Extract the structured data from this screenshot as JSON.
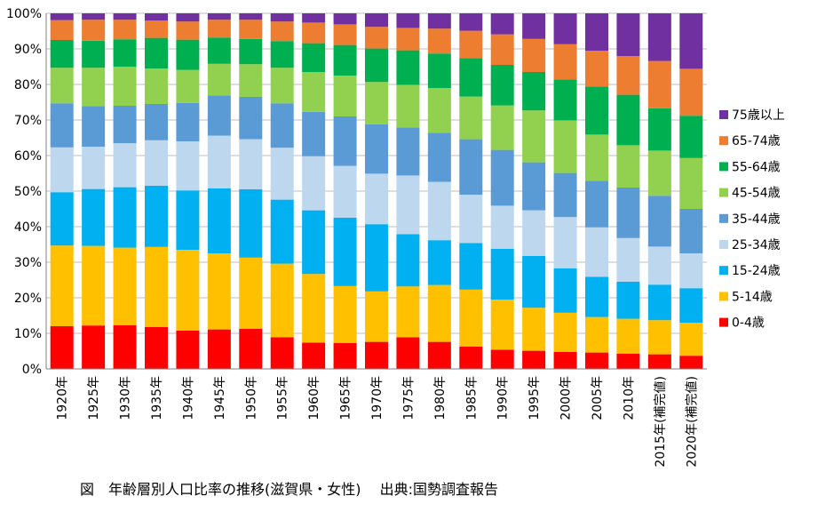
{
  "chart_data": {
    "type": "bar",
    "stacked": true,
    "categories": [
      "1920年",
      "1925年",
      "1930年",
      "1935年",
      "1940年",
      "1945年",
      "1950年",
      "1955年",
      "1960年",
      "1965年",
      "1970年",
      "1975年",
      "1980年",
      "1985年",
      "1990年",
      "1995年",
      "2000年",
      "2005年",
      "2010年",
      "2015年(補完値)",
      "2020年(補完値)"
    ],
    "y_ticks": [
      "0%",
      "10%",
      "20%",
      "30%",
      "40%",
      "50%",
      "60%",
      "70%",
      "80%",
      "90%",
      "100%"
    ],
    "ylim": [
      0,
      100
    ],
    "legend_position": "right",
    "series": [
      {
        "name": "0-4歳",
        "color": "#ff0000",
        "values": [
          12.0,
          12.2,
          12.3,
          11.8,
          10.8,
          11.1,
          11.3,
          8.9,
          7.4,
          7.3,
          7.6,
          8.9,
          7.6,
          6.3,
          5.4,
          5.1,
          4.8,
          4.6,
          4.3,
          4.1,
          3.7
        ]
      },
      {
        "name": "5-14歳",
        "color": "#ffc000",
        "values": [
          22.7,
          22.4,
          21.8,
          22.5,
          22.7,
          21.4,
          20.0,
          20.7,
          19.3,
          16.0,
          14.2,
          14.3,
          16.0,
          16.0,
          14.1,
          12.1,
          11.0,
          10.0,
          9.8,
          9.6,
          9.3
        ]
      },
      {
        "name": "15-24歳",
        "color": "#00b0f0",
        "values": [
          15.0,
          16.0,
          17.0,
          17.2,
          16.7,
          18.3,
          19.2,
          18.0,
          17.9,
          19.2,
          18.9,
          14.7,
          12.6,
          13.1,
          14.3,
          14.6,
          12.5,
          11.3,
          10.4,
          10.0,
          9.7
        ]
      },
      {
        "name": "25-34歳",
        "color": "#bdd7ee",
        "values": [
          12.6,
          11.9,
          12.4,
          12.8,
          13.8,
          14.8,
          14.1,
          14.6,
          15.2,
          14.6,
          14.2,
          16.5,
          16.4,
          13.6,
          12.1,
          12.8,
          14.4,
          13.9,
          12.3,
          10.7,
          9.8
        ]
      },
      {
        "name": "35-44歳",
        "color": "#5b9bd5",
        "values": [
          12.4,
          11.4,
          10.5,
          10.2,
          10.8,
          11.3,
          11.9,
          12.5,
          12.5,
          13.9,
          13.9,
          13.5,
          13.8,
          15.6,
          15.7,
          13.5,
          12.4,
          13.1,
          14.2,
          14.3,
          12.5
        ]
      },
      {
        "name": "45-54歳",
        "color": "#92d050",
        "values": [
          10.0,
          10.8,
          11.0,
          10.0,
          9.3,
          8.9,
          9.2,
          10.0,
          11.2,
          11.5,
          11.9,
          12.0,
          12.6,
          12.0,
          12.5,
          14.6,
          14.8,
          13.0,
          11.9,
          12.7,
          14.3
        ]
      },
      {
        "name": "55-64歳",
        "color": "#00b050",
        "values": [
          7.8,
          7.6,
          7.7,
          8.6,
          8.5,
          7.4,
          7.1,
          7.5,
          8.1,
          8.6,
          9.4,
          9.7,
          9.7,
          10.8,
          11.4,
          10.8,
          11.5,
          13.5,
          14.2,
          11.9,
          11.9
        ]
      },
      {
        "name": "65-74歳",
        "color": "#ed7d31",
        "values": [
          5.6,
          5.9,
          5.5,
          4.9,
          5.1,
          5.0,
          5.4,
          5.5,
          5.8,
          5.8,
          6.1,
          6.3,
          7.0,
          7.7,
          8.6,
          9.3,
          9.9,
          10.1,
          10.9,
          13.3,
          13.2
        ]
      },
      {
        "name": "75歳以上",
        "color": "#7030a0",
        "values": [
          1.9,
          1.8,
          1.8,
          2.0,
          2.3,
          1.8,
          1.8,
          2.3,
          2.6,
          3.1,
          3.8,
          4.1,
          4.3,
          4.9,
          5.9,
          7.2,
          8.7,
          10.5,
          12.0,
          13.4,
          15.6
        ]
      }
    ]
  },
  "caption": "図　年齢層別人口比率の推移(滋賀県・女性)　 出典:国勢調査報告"
}
